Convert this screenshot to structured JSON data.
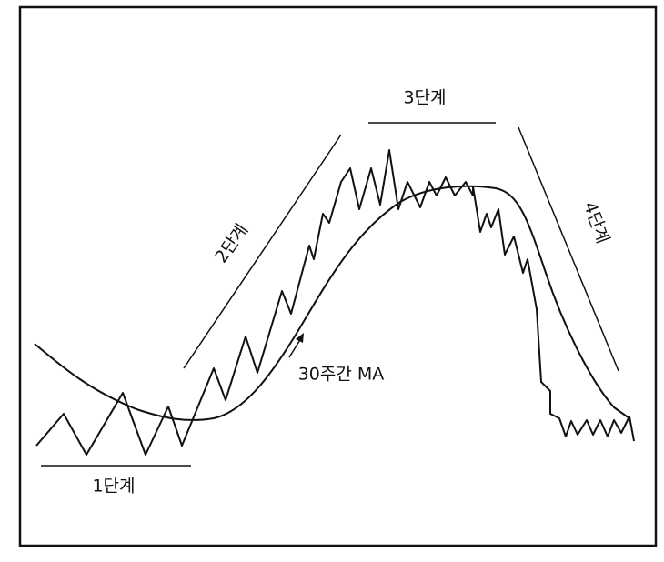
{
  "stages": [
    "1단계",
    "2단계",
    "3단계",
    "4단계"
  ],
  "ma_label": "30주간 MA"
}
